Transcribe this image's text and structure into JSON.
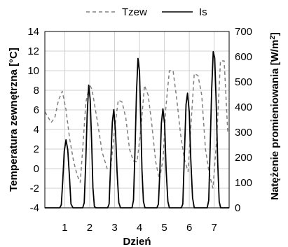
{
  "chart_data": {
    "type": "line",
    "xlabel": "Dzień",
    "ylabel_left": "Temperatura zewnętrzna [°C]",
    "ylabel_right": "Natężenie promieniowania [W/m²]",
    "ylabel_right_base": "Natężenie promieniowania [W/m",
    "ylabel_right_sup": "2",
    "ylabel_right_close": "]",
    "x_range": [
      0.2,
      7.6
    ],
    "x_ticks": [
      1,
      2,
      3,
      4,
      5,
      6,
      7
    ],
    "y_left_range": [
      -4,
      14
    ],
    "y_left_ticks": [
      -4,
      -2,
      0,
      2,
      4,
      6,
      8,
      10,
      12,
      14
    ],
    "y_right_range": [
      0,
      700
    ],
    "y_right_ticks": [
      0,
      100,
      200,
      300,
      400,
      500,
      600,
      700
    ],
    "grid": true,
    "legend_position": "top",
    "series": [
      {
        "name": "Tzew",
        "axis": "left",
        "style": "dashed",
        "color": "#808080",
        "x": [
          0.2,
          0.3,
          0.45,
          0.6,
          0.75,
          0.9,
          1.05,
          1.2,
          1.35,
          1.5,
          1.62,
          1.72,
          1.85,
          2.0,
          2.1,
          2.3,
          2.5,
          2.7,
          2.85,
          3.0,
          3.15,
          3.3,
          3.45,
          3.6,
          3.75,
          3.9,
          4.05,
          4.2,
          4.35,
          4.5,
          4.65,
          4.8,
          4.95,
          5.05,
          5.2,
          5.35,
          5.5,
          5.65,
          5.8,
          5.95,
          6.05,
          6.2,
          6.35,
          6.5,
          6.65,
          6.8,
          6.95,
          7.1,
          7.25,
          7.4,
          7.55
        ],
        "values": [
          5.8,
          5.4,
          4.7,
          5.2,
          7.0,
          7.9,
          6.0,
          3.0,
          0.8,
          -0.7,
          -1.4,
          2.0,
          6.8,
          8.6,
          8.0,
          5.0,
          1.7,
          0.0,
          0.2,
          4.0,
          7.0,
          6.8,
          5.2,
          2.0,
          0.8,
          0.7,
          3.8,
          8.5,
          7.5,
          4.4,
          0.7,
          -1.1,
          1.0,
          6.0,
          10.0,
          10.0,
          7.0,
          3.5,
          1.0,
          -0.3,
          3.8,
          9.7,
          9.5,
          7.5,
          2.0,
          -0.5,
          -2.0,
          3.0,
          11.0,
          11.0,
          3.5
        ]
      },
      {
        "name": "Is",
        "axis": "right",
        "style": "solid",
        "color": "#000000",
        "x": [
          0.2,
          0.8,
          0.86,
          0.92,
          0.98,
          1.05,
          1.12,
          1.19,
          1.25,
          1.33,
          1.72,
          1.78,
          1.84,
          1.9,
          1.96,
          2.02,
          2.08,
          2.13,
          2.19,
          2.25,
          2.33,
          2.72,
          2.78,
          2.84,
          2.91,
          2.97,
          3.04,
          3.1,
          3.17,
          3.24,
          3.3,
          3.7,
          3.76,
          3.82,
          3.88,
          3.94,
          4.0,
          4.05,
          4.1,
          4.16,
          4.22,
          4.3,
          4.7,
          4.76,
          4.82,
          4.88,
          4.94,
          5.01,
          5.07,
          5.14,
          5.2,
          5.28,
          5.68,
          5.74,
          5.8,
          5.87,
          5.93,
          6.0,
          6.06,
          6.13,
          6.2,
          6.28,
          6.72,
          6.78,
          6.84,
          6.9,
          6.96,
          7.02,
          7.08,
          7.14,
          7.2,
          7.26,
          7.34,
          7.6
        ],
        "values": [
          0,
          0,
          12,
          110,
          225,
          270,
          230,
          120,
          15,
          0,
          0,
          20,
          175,
          370,
          487,
          430,
          260,
          80,
          5,
          0,
          0,
          0,
          15,
          165,
          340,
          390,
          300,
          140,
          20,
          0,
          0,
          0,
          30,
          230,
          460,
          593,
          540,
          360,
          150,
          25,
          0,
          0,
          0,
          15,
          150,
          335,
          393,
          330,
          150,
          25,
          0,
          0,
          0,
          15,
          200,
          410,
          455,
          380,
          190,
          40,
          0,
          0,
          0,
          30,
          250,
          470,
          620,
          595,
          420,
          180,
          25,
          0,
          0,
          0
        ]
      }
    ]
  }
}
